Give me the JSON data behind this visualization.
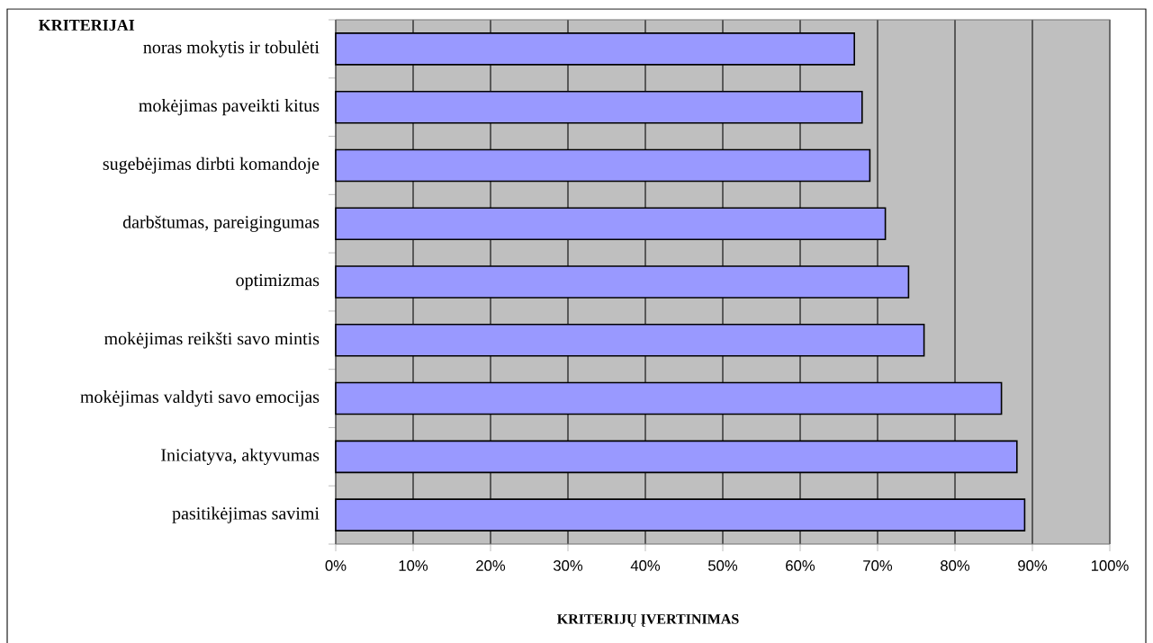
{
  "chart_data": {
    "type": "bar",
    "orientation": "horizontal",
    "xlabel": "KRITERIJŲ ĮVERTINIMAS",
    "ylabel": "KRITERIJAI",
    "categories": [
      "noras mokytis ir tobulėti",
      "mokėjimas paveikti kitus",
      "sugebėjimas dirbti komandoje",
      "darbštumas, pareigingumas",
      "optimizmas",
      "mokėjimas reikšti savo mintis",
      "mokėjimas valdyti savo emocijas",
      "Iniciatyva, aktyvumas",
      "pasitikėjimas savimi"
    ],
    "values": [
      67,
      68,
      69,
      71,
      74,
      76,
      86,
      88,
      89
    ],
    "color": "#9999ff",
    "xlim": [
      0,
      100
    ],
    "xticks": [
      {
        "value": 0,
        "label": "0%"
      },
      {
        "value": 10,
        "label": "10%"
      },
      {
        "value": 20,
        "label": "20%"
      },
      {
        "value": 30,
        "label": "30%"
      },
      {
        "value": 40,
        "label": "40%"
      },
      {
        "value": 50,
        "label": "50%"
      },
      {
        "value": 60,
        "label": "60%"
      },
      {
        "value": 70,
        "label": "70%"
      },
      {
        "value": 80,
        "label": "80%"
      },
      {
        "value": 90,
        "label": "90%"
      },
      {
        "value": 100,
        "label": "100%"
      }
    ],
    "grid": "x"
  }
}
